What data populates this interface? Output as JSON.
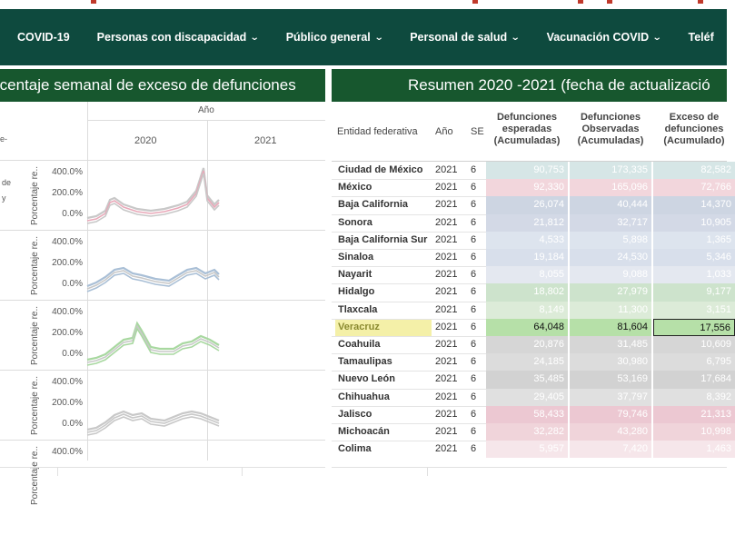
{
  "colors": {
    "nav_bg": "#0e4a3e",
    "panel_header_bg": "#17572e",
    "highlight_row": "#f4f0a8",
    "highlight_value": "#b6e0a8",
    "line_gray": "#c8c8c8",
    "line_blue": "#a9bfd6",
    "line_green": "#a8d8a0",
    "line_pink": "#e8a8b8"
  },
  "nav": {
    "items": [
      {
        "label": "COVID-19",
        "dropdown": false
      },
      {
        "label": "Personas con discapacidad",
        "dropdown": true
      },
      {
        "label": "Público general",
        "dropdown": true
      },
      {
        "label": "Personal de salud",
        "dropdown": true
      },
      {
        "label": "Vacunación COVID",
        "dropdown": true
      },
      {
        "label": "Teléf",
        "dropdown": false
      }
    ]
  },
  "left_panel": {
    "title": "rcentaje semanal de exceso de defunciones",
    "year_header_label": "Año",
    "years": [
      "2020",
      "2021"
    ],
    "row_label_fragments": [
      "e-",
      "de",
      "y"
    ],
    "axis_label": "Porcentaje re..",
    "tick_labels": [
      "400.0%",
      "200.0%",
      "0.0%"
    ]
  },
  "right_panel": {
    "title": "Resumen 2020 -2021 (fecha de actualizació",
    "headers": {
      "entidad": "Entidad federativa",
      "anio": "Año",
      "se": "SE",
      "esperadas": [
        "Defunciones",
        "esperadas",
        "(Acumuladas)"
      ],
      "observadas": [
        "Defunciones",
        "Observadas",
        "(Acumuladas)"
      ],
      "exceso": [
        "Exceso de",
        "defunciones",
        "(Acumulado)"
      ]
    },
    "rows": [
      {
        "entidad": "Ciudad de México",
        "anio": "2021",
        "se": "6",
        "esperadas": "90,753",
        "observadas": "173,335",
        "exceso": "82,582",
        "bg": "#d6e6e6"
      },
      {
        "entidad": "México",
        "anio": "2021",
        "se": "6",
        "esperadas": "92,330",
        "observadas": "165,096",
        "exceso": "72,766",
        "bg": "#f2d6dc"
      },
      {
        "entidad": "Baja California",
        "anio": "2021",
        "se": "6",
        "esperadas": "26,074",
        "observadas": "40,444",
        "exceso": "14,370",
        "bg": "#cdd5e2"
      },
      {
        "entidad": "Sonora",
        "anio": "2021",
        "se": "6",
        "esperadas": "21,812",
        "observadas": "32,717",
        "exceso": "10,905",
        "bg": "#d3d9e6"
      },
      {
        "entidad": "Baja California Sur",
        "anio": "2021",
        "se": "6",
        "esperadas": "4,533",
        "observadas": "5,898",
        "exceso": "1,365",
        "bg": "#dde4ee"
      },
      {
        "entidad": "Sinaloa",
        "anio": "2021",
        "se": "6",
        "esperadas": "19,184",
        "observadas": "24,530",
        "exceso": "5,346",
        "bg": "#d8dfeb"
      },
      {
        "entidad": "Nayarit",
        "anio": "2021",
        "se": "6",
        "esperadas": "8,055",
        "observadas": "9,088",
        "exceso": "1,033",
        "bg": "#e4e8f0"
      },
      {
        "entidad": "Hidalgo",
        "anio": "2021",
        "se": "6",
        "esperadas": "18,802",
        "observadas": "27,979",
        "exceso": "9,177",
        "bg": "#cde3cc"
      },
      {
        "entidad": "Tlaxcala",
        "anio": "2021",
        "se": "6",
        "esperadas": "8,149",
        "observadas": "11,300",
        "exceso": "3,151",
        "bg": "#dcebd8"
      },
      {
        "entidad": "Veracruz",
        "anio": "2021",
        "se": "6",
        "esperadas": "64,048",
        "observadas": "81,604",
        "exceso": "17,556",
        "bg": "#b6e0a8",
        "highlight": true
      },
      {
        "entidad": "Coahuila",
        "anio": "2021",
        "se": "6",
        "esperadas": "20,876",
        "observadas": "31,485",
        "exceso": "10,609",
        "bg": "#d6d6d6"
      },
      {
        "entidad": "Tamaulipas",
        "anio": "2021",
        "se": "6",
        "esperadas": "24,185",
        "observadas": "30,980",
        "exceso": "6,795",
        "bg": "#dcdcdc"
      },
      {
        "entidad": "Nuevo León",
        "anio": "2021",
        "se": "6",
        "esperadas": "35,485",
        "observadas": "53,169",
        "exceso": "17,684",
        "bg": "#d2d2d2"
      },
      {
        "entidad": "Chihuahua",
        "anio": "2021",
        "se": "6",
        "esperadas": "29,405",
        "observadas": "37,797",
        "exceso": "8,392",
        "bg": "#e0e0e0"
      },
      {
        "entidad": "Jalisco",
        "anio": "2021",
        "se": "6",
        "esperadas": "58,433",
        "observadas": "79,746",
        "exceso": "21,313",
        "bg": "#ecc8d2"
      },
      {
        "entidad": "Michoacán",
        "anio": "2021",
        "se": "6",
        "esperadas": "32,282",
        "observadas": "43,280",
        "exceso": "10,998",
        "bg": "#f0d4da"
      },
      {
        "entidad": "Colima",
        "anio": "2021",
        "se": "6",
        "esperadas": "5,957",
        "observadas": "7,420",
        "exceso": "1,463",
        "bg": "#f6e6ea"
      }
    ]
  }
}
